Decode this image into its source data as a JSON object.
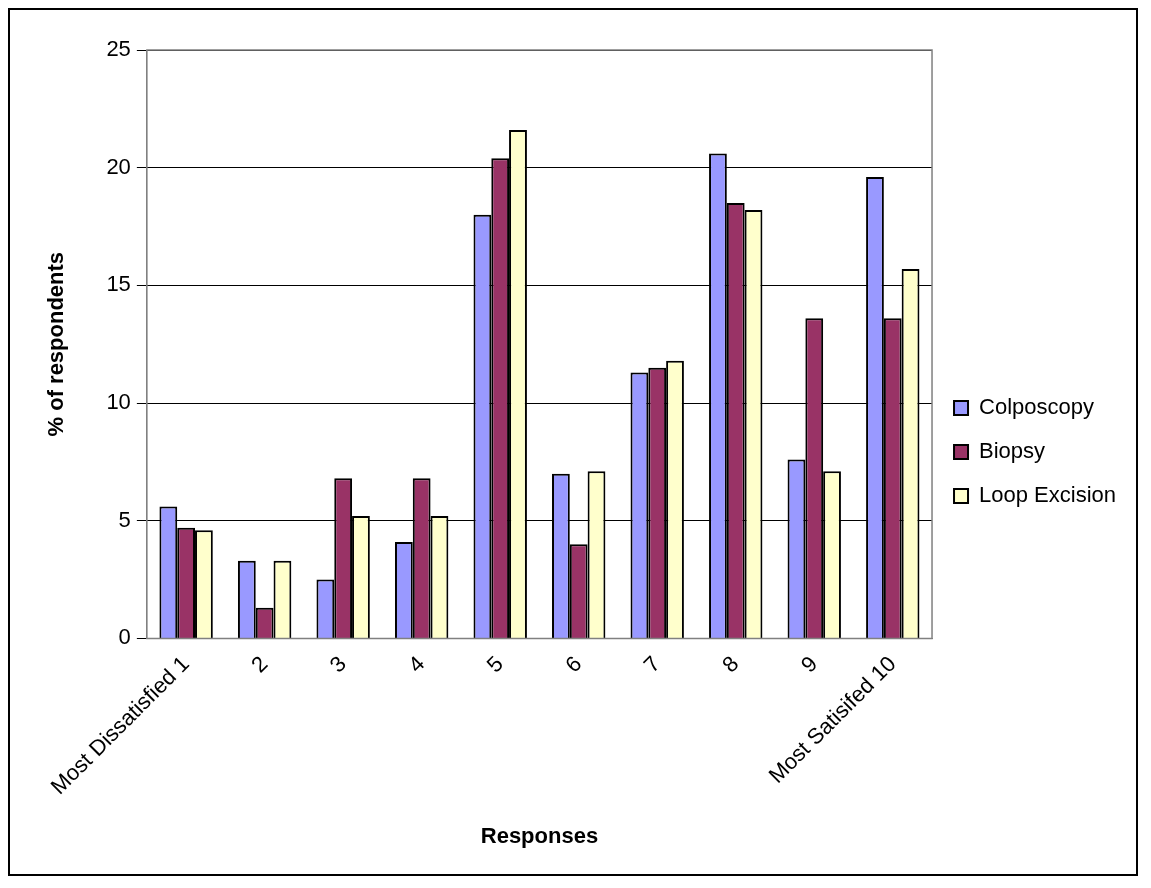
{
  "chart_data": {
    "type": "bar",
    "xlabel": "Responses",
    "ylabel": "% of respondents",
    "categories": [
      "Most Dissatisfied 1",
      "2",
      "3",
      "4",
      "5",
      "6",
      "7",
      "8",
      "9",
      "Most Satisifed 10"
    ],
    "series": [
      {
        "name": "Colposcopy",
        "color": "#9999ff",
        "values": [
          5.6,
          3.3,
          2.5,
          4.1,
          18.0,
          7.0,
          11.3,
          20.6,
          7.6,
          19.6
        ]
      },
      {
        "name": "Biopsy",
        "color": "#993366",
        "values": [
          4.7,
          1.3,
          6.8,
          6.8,
          20.4,
          4.0,
          11.5,
          18.5,
          13.6,
          13.6
        ]
      },
      {
        "name": "Loop Excision",
        "color": "#ffffcc",
        "values": [
          4.6,
          3.3,
          5.2,
          5.2,
          21.6,
          7.1,
          11.8,
          18.2,
          7.1,
          15.7
        ]
      }
    ],
    "ylim": [
      0,
      25
    ],
    "yticks": [
      0,
      5,
      10,
      15,
      20,
      25
    ],
    "grid": "y",
    "legend": "right"
  }
}
